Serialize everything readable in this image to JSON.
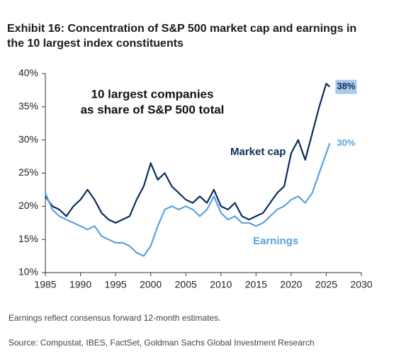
{
  "chart_data": {
    "type": "line",
    "title": "Exhibit 16: Concentration of S&P 500 market cap and earnings in the 10 largest index constituents",
    "annotation": [
      "10 largest companies",
      "as share of S&P 500 total"
    ],
    "note": "Earnings reflect consensus forward 12-month estimates.",
    "source": "Source: Compustat, IBES, FactSet, Goldman Sachs Global Investment Research",
    "x": [
      1985,
      1986,
      1987,
      1988,
      1989,
      1990,
      1991,
      1992,
      1993,
      1994,
      1995,
      1996,
      1997,
      1998,
      1999,
      2000,
      2001,
      2002,
      2003,
      2004,
      2005,
      2006,
      2007,
      2008,
      2009,
      2010,
      2011,
      2012,
      2013,
      2014,
      2015,
      2016,
      2017,
      2018,
      2019,
      2020,
      2021,
      2022,
      2023,
      2024,
      2025,
      2025.5
    ],
    "series": [
      {
        "name": "Market cap",
        "color": "#0b2d5b",
        "values": [
          21.5,
          20,
          19.5,
          18.5,
          20,
          21,
          22.5,
          21,
          19,
          18,
          17.5,
          18,
          18.5,
          21,
          23,
          26.5,
          24,
          25,
          23,
          22,
          21,
          20.5,
          21.5,
          20.5,
          22.5,
          20,
          19.5,
          20.5,
          18.5,
          18,
          18.5,
          19,
          20.5,
          22,
          23,
          28,
          30,
          27,
          31,
          35,
          38.5,
          38
        ],
        "value_labels": [
          null,
          null,
          null,
          null,
          null,
          null,
          null,
          null,
          null,
          null,
          null,
          null,
          null,
          null,
          null,
          null,
          null,
          null,
          null,
          null,
          null,
          null,
          null,
          null,
          null,
          null,
          null,
          null,
          null,
          null,
          null,
          null,
          null,
          null,
          null,
          null,
          null,
          null,
          null,
          null,
          null,
          "38%"
        ]
      },
      {
        "name": "Earnings",
        "color": "#5ba3dc",
        "values": [
          22,
          19.5,
          18.5,
          18,
          17.5,
          17,
          16.5,
          17,
          15.5,
          15,
          14.5,
          14.5,
          14,
          13,
          12.5,
          14,
          17,
          19.5,
          20,
          19.5,
          20,
          19.5,
          18.5,
          19.5,
          21.5,
          19,
          18,
          18.5,
          17.5,
          17.5,
          17,
          17.5,
          18.5,
          19.5,
          20,
          21,
          21.5,
          20.5,
          22,
          25,
          28,
          29.5
        ],
        "value_labels": [
          null,
          null,
          null,
          null,
          null,
          null,
          null,
          null,
          null,
          null,
          null,
          null,
          null,
          null,
          null,
          null,
          null,
          null,
          null,
          null,
          null,
          null,
          null,
          null,
          null,
          null,
          null,
          null,
          null,
          null,
          null,
          null,
          null,
          null,
          null,
          null,
          null,
          null,
          null,
          null,
          null,
          "30%"
        ]
      }
    ],
    "xlim": [
      1985,
      2030
    ],
    "xticks": [
      1985,
      1990,
      1995,
      2000,
      2005,
      2010,
      2015,
      2020,
      2025,
      2030
    ],
    "ylim": [
      10,
      40
    ],
    "yticks": [
      {
        "value": 10,
        "label": "10%"
      },
      {
        "value": 15,
        "label": "15%"
      },
      {
        "value": 20,
        "label": "20%"
      },
      {
        "value": 25,
        "label": "25%"
      },
      {
        "value": 30,
        "label": "30%"
      },
      {
        "value": 35,
        "label": "35%"
      },
      {
        "value": 40,
        "label": "40%"
      }
    ]
  }
}
